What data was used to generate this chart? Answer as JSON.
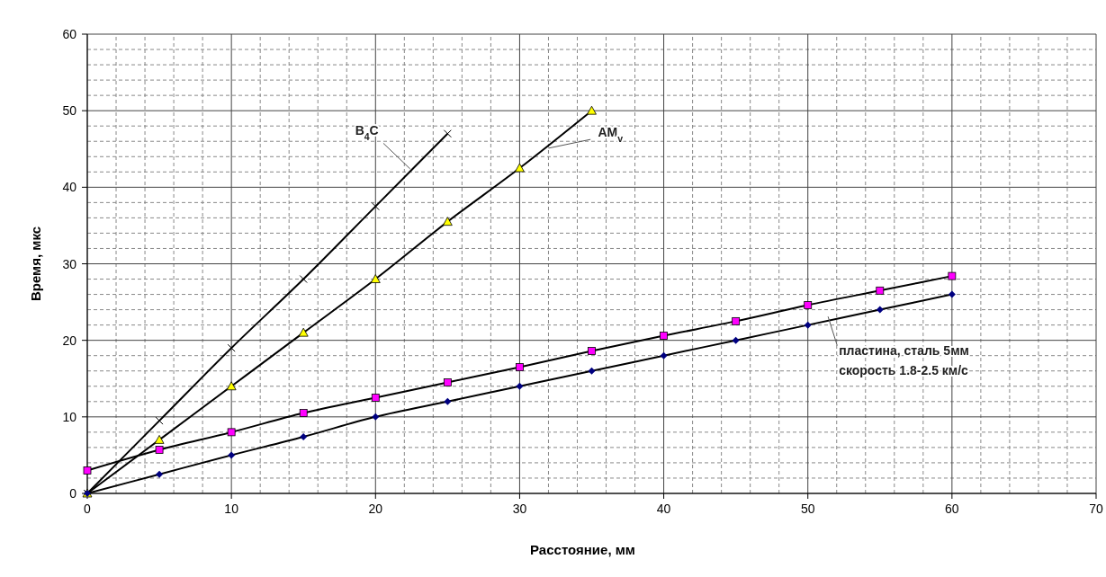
{
  "chart_data": {
    "type": "line",
    "xlabel": "Расстояние, мм",
    "ylabel": "Время, мкс",
    "xlim": [
      0,
      70
    ],
    "xticks": [
      0,
      10,
      20,
      30,
      40,
      50,
      60,
      70
    ],
    "ylim": [
      0,
      60
    ],
    "yticks": [
      0,
      10,
      20,
      30,
      40,
      50,
      60
    ],
    "grid": true,
    "series": [
      {
        "color": "#000000",
        "marker": "cross",
        "x": [
          0,
          5,
          10,
          15,
          20,
          25
        ],
        "values": [
          0,
          9.5,
          19,
          28,
          37.5,
          47
        ]
      },
      {
        "color": "#ffff00",
        "marker": "triangle",
        "x": [
          0,
          5,
          10,
          15,
          20,
          25,
          30,
          35
        ],
        "values": [
          0,
          7,
          14,
          21,
          28,
          35.5,
          42.5,
          50
        ]
      },
      {
        "color": "#ff00ff",
        "marker": "square",
        "x": [
          0,
          5,
          10,
          15,
          20,
          25,
          30,
          35,
          40,
          45,
          50,
          55,
          60
        ],
        "values": [
          3,
          5.7,
          8,
          10.5,
          12.5,
          14.5,
          16.5,
          18.6,
          20.6,
          22.5,
          24.6,
          26.5,
          28.4
        ]
      },
      {
        "color": "#000080",
        "marker": "diamond",
        "x": [
          0,
          5,
          10,
          15,
          20,
          25,
          30,
          35,
          40,
          45,
          50,
          55,
          60
        ],
        "values": [
          0,
          2.5,
          5,
          7.4,
          10,
          12,
          14,
          16,
          18,
          20,
          22,
          24,
          26
        ]
      }
    ],
    "annotations": [
      {
        "text": "B$_{4}$C",
        "x": 22.4,
        "y": 42.4
      },
      {
        "text": "AM$_{v}$",
        "x": 32,
        "y": 45.1
      },
      {
        "text": "пластина, сталь 5мм\nскорость 1.8-2.5  км/с",
        "x": 51.4,
        "y": 23.1
      }
    ]
  }
}
